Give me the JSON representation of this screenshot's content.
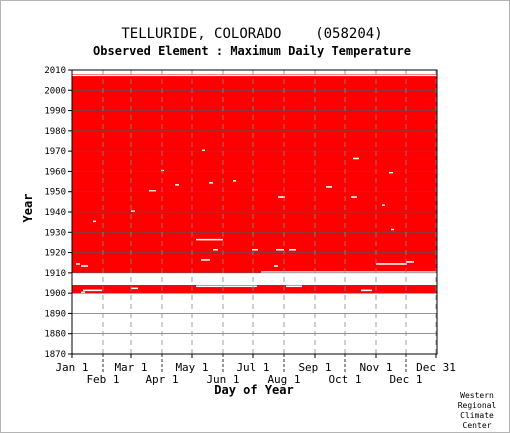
{
  "chart_data": {
    "type": "heatmap",
    "title": "TELLURIDE, COLORADO    (058204)",
    "subtitle": "Observed Element : Maximum Daily Temperature",
    "xlabel": "Day of Year",
    "ylabel": "Year",
    "ylim": [
      1870,
      2010
    ],
    "y_ticks": [
      1870,
      1880,
      1890,
      1900,
      1910,
      1920,
      1930,
      1940,
      1950,
      1960,
      1970,
      1980,
      1990,
      2000,
      2010
    ],
    "x_ticks_top": [
      {
        "label": "Jan 1",
        "day": 1
      },
      {
        "label": "Mar 1",
        "day": 60
      },
      {
        "label": "May 1",
        "day": 121
      },
      {
        "label": "Jul 1",
        "day": 182
      },
      {
        "label": "Sep 1",
        "day": 244
      },
      {
        "label": "Nov 1",
        "day": 305
      },
      {
        "label": "Dec 31",
        "day": 365
      }
    ],
    "x_ticks_bottom": [
      {
        "label": "Feb 1",
        "day": 32
      },
      {
        "label": "Apr 1",
        "day": 91
      },
      {
        "label": "Jun 1",
        "day": 152
      },
      {
        "label": "Aug 1",
        "day": 213
      },
      {
        "label": "Oct 1",
        "day": 274
      },
      {
        "label": "Dec 1",
        "day": 335
      }
    ],
    "grid": true,
    "data_color": "#ff0000",
    "missing_color": "#ffffff",
    "observed_periods": [
      {
        "start_year": 1900,
        "end_year": 1903,
        "day_start": 1,
        "day_end": 365
      },
      {
        "start_year": 1910,
        "end_year": 2007,
        "day_start": 1,
        "day_end": 365
      }
    ],
    "gaps": [
      {
        "year": 2007,
        "day_start": 1,
        "day_end": 365
      },
      {
        "year": 1910,
        "day_start": 190,
        "day_end": 365
      },
      {
        "year": 1913,
        "day_start": 10,
        "day_end": 16
      },
      {
        "year": 1914,
        "day_start": 5,
        "day_end": 8
      },
      {
        "year": 1915,
        "day_start": 335,
        "day_end": 342
      },
      {
        "year": 1914,
        "day_start": 305,
        "day_end": 335
      },
      {
        "year": 1916,
        "day_start": 130,
        "day_end": 138
      },
      {
        "year": 1921,
        "day_start": 205,
        "day_end": 212
      },
      {
        "year": 1921,
        "day_start": 218,
        "day_end": 224
      },
      {
        "year": 1921,
        "day_start": 142,
        "day_end": 146
      },
      {
        "year": 1921,
        "day_start": 181,
        "day_end": 186
      },
      {
        "year": 1926,
        "day_start": 125,
        "day_end": 151
      },
      {
        "year": 1935,
        "day_start": 22,
        "day_end": 24
      },
      {
        "year": 1940,
        "day_start": 60,
        "day_end": 63
      },
      {
        "year": 1947,
        "day_start": 207,
        "day_end": 213
      },
      {
        "year": 1947,
        "day_start": 280,
        "day_end": 285
      },
      {
        "year": 1950,
        "day_start": 78,
        "day_end": 84
      },
      {
        "year": 1952,
        "day_start": 255,
        "day_end": 260
      },
      {
        "year": 1966,
        "day_start": 282,
        "day_end": 287
      },
      {
        "year": 1959,
        "day_start": 318,
        "day_end": 321
      },
      {
        "year": 1953,
        "day_start": 104,
        "day_end": 107
      },
      {
        "year": 1954,
        "day_start": 138,
        "day_end": 141
      },
      {
        "year": 1955,
        "day_start": 162,
        "day_end": 164
      },
      {
        "year": 1970,
        "day_start": 131,
        "day_end": 133
      },
      {
        "year": 1960,
        "day_start": 90,
        "day_end": 92
      },
      {
        "year": 1943,
        "day_start": 311,
        "day_end": 313
      },
      {
        "year": 1931,
        "day_start": 320,
        "day_end": 322
      },
      {
        "year": 1913,
        "day_start": 203,
        "day_end": 206
      },
      {
        "year": 1903,
        "day_start": 125,
        "day_end": 185
      },
      {
        "year": 1903,
        "day_start": 215,
        "day_end": 230
      },
      {
        "year": 1902,
        "day_start": 60,
        "day_end": 66
      },
      {
        "year": 1901,
        "day_start": 12,
        "day_end": 30
      },
      {
        "year": 1901,
        "day_start": 290,
        "day_end": 300
      },
      {
        "year": 1900,
        "day_start": 10,
        "day_end": 13
      }
    ]
  },
  "credit": [
    "Western",
    "Regional",
    "Climate",
    "Center"
  ]
}
